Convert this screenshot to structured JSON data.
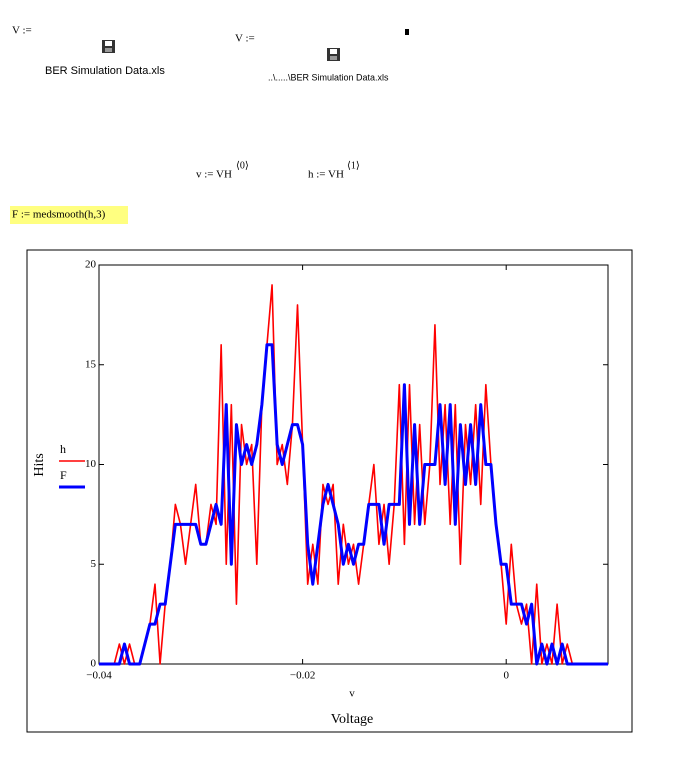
{
  "worksheet": {
    "assign1": {
      "lhs": "V :=",
      "file": "BER Simulation Data.xls"
    },
    "assign2": {
      "lhs": "V :=",
      "file": "..\\.....\\BER Simulation Data.xls"
    },
    "expr_v": {
      "text": "v := VH",
      "sup": "⟨0⟩"
    },
    "expr_h": {
      "text": "h := VH",
      "sup": "⟨1⟩"
    },
    "expr_F": "F := medsmooth(h,3)"
  },
  "chart_data": {
    "type": "line",
    "xlabel": "v",
    "xtitle": "Voltage",
    "ylabel": "Hits",
    "xlim": [
      -0.04,
      0.01
    ],
    "ylim": [
      0,
      20
    ],
    "xticks": [
      {
        "value": -0.04,
        "label": "−0.04"
      },
      {
        "value": -0.02,
        "label": "−0.02"
      },
      0
    ],
    "yticks": [
      0,
      5,
      10,
      15,
      20
    ],
    "grid": false,
    "legend": "left",
    "x": [
      -0.04,
      -0.0395,
      -0.039,
      -0.0385,
      -0.038,
      -0.0375,
      -0.037,
      -0.0365,
      -0.036,
      -0.0355,
      -0.035,
      -0.0345,
      -0.034,
      -0.0335,
      -0.033,
      -0.0325,
      -0.032,
      -0.0315,
      -0.031,
      -0.0305,
      -0.03,
      -0.0295,
      -0.029,
      -0.0285,
      -0.028,
      -0.0275,
      -0.027,
      -0.0265,
      -0.026,
      -0.0255,
      -0.025,
      -0.0245,
      -0.024,
      -0.0235,
      -0.023,
      -0.0225,
      -0.022,
      -0.0215,
      -0.021,
      -0.0205,
      -0.02,
      -0.0195,
      -0.019,
      -0.0185,
      -0.018,
      -0.0175,
      -0.017,
      -0.0165,
      -0.016,
      -0.0155,
      -0.015,
      -0.0145,
      -0.014,
      -0.0135,
      -0.013,
      -0.0125,
      -0.012,
      -0.0115,
      -0.011,
      -0.0105,
      -0.01,
      -0.0095,
      -0.009,
      -0.0085,
      -0.008,
      -0.0075,
      -0.007,
      -0.0065,
      -0.006,
      -0.0055,
      -0.005,
      -0.0045,
      -0.004,
      -0.0035,
      -0.003,
      -0.0025,
      -0.002,
      -0.0015,
      -0.001,
      -0.0005,
      0,
      0.0005,
      0.001,
      0.0015,
      0.002,
      0.0025,
      0.003,
      0.0035,
      0.004,
      0.0045,
      0.005,
      0.0055,
      0.006,
      0.0065,
      0.007,
      0.0075,
      0.008,
      0.0085,
      0.009,
      0.0095,
      0.01
    ],
    "series": [
      {
        "name": "h",
        "color": "#ff0000",
        "values": [
          0,
          0,
          0,
          0,
          1,
          0,
          1,
          0,
          0,
          1,
          2,
          4,
          0,
          3,
          5,
          8,
          7,
          5,
          7,
          9,
          6,
          6,
          8,
          7,
          16,
          5,
          13,
          3,
          12,
          10,
          11,
          5,
          13,
          16,
          19,
          10,
          11,
          9,
          12,
          18,
          11,
          4,
          6,
          4,
          9,
          8,
          9,
          4,
          7,
          5,
          6,
          4,
          6,
          8,
          10,
          6,
          8,
          5,
          8,
          14,
          6,
          14,
          7,
          12,
          7,
          10,
          17,
          9,
          13,
          7,
          13,
          5,
          12,
          9,
          13,
          8,
          14,
          10,
          7,
          5,
          2,
          6,
          3,
          2,
          3,
          0,
          4,
          0,
          1,
          0,
          3,
          0,
          1,
          0,
          0,
          0,
          0,
          0,
          0,
          0,
          0
        ]
      },
      {
        "name": "F",
        "color": "#0000ff",
        "values": [
          0,
          0,
          0,
          0,
          0,
          1,
          0,
          0,
          0,
          1,
          2,
          2,
          3,
          3,
          5,
          7,
          7,
          7,
          7,
          7,
          6,
          6,
          7,
          8,
          7,
          13,
          5,
          12,
          10,
          11,
          10,
          11,
          13,
          16,
          16,
          11,
          10,
          11,
          12,
          12,
          11,
          6,
          4,
          6,
          8,
          9,
          8,
          7,
          5,
          6,
          5,
          6,
          6,
          8,
          8,
          8,
          6,
          8,
          8,
          8,
          14,
          7,
          12,
          7,
          10,
          10,
          10,
          13,
          9,
          13,
          7,
          12,
          9,
          12,
          9,
          13,
          10,
          10,
          7,
          5,
          5,
          3,
          3,
          3,
          2,
          3,
          0,
          1,
          0,
          1,
          0,
          1,
          0,
          0,
          0,
          0,
          0,
          0,
          0,
          0,
          0
        ]
      }
    ]
  }
}
